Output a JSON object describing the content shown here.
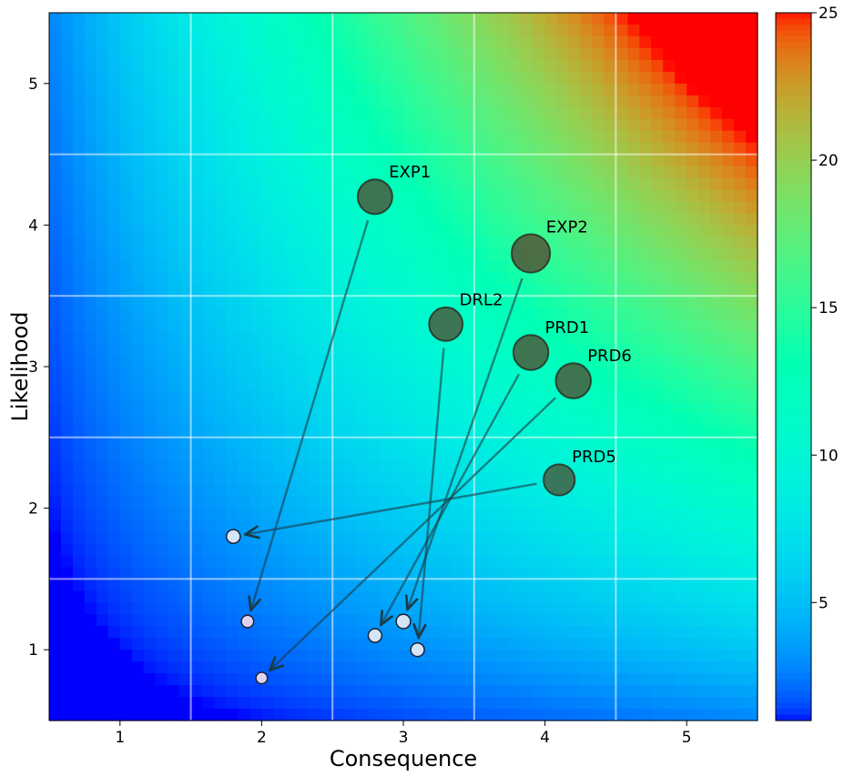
{
  "chart_data": {
    "type": "scatter",
    "title": "",
    "xlabel": "Consequence",
    "ylabel": "Likelihood",
    "xlim": [
      0.5,
      5.5
    ],
    "ylim": [
      0.5,
      5.5
    ],
    "xticks": [
      "1",
      "2",
      "3",
      "4",
      "5"
    ],
    "yticks": [
      "1",
      "2",
      "3",
      "4",
      "5"
    ],
    "grid": true,
    "background": "heatmap of Consequence × Likelihood using rainbow colormap",
    "colorbar": {
      "min": 1,
      "max": 25,
      "ticks": [
        "5",
        "10",
        "15",
        "20",
        "25"
      ],
      "colormap": "rainbow"
    },
    "risks": [
      {
        "label": "EXP1",
        "before": {
          "x": 2.8,
          "y": 4.2
        },
        "after": {
          "x": 1.9,
          "y": 1.2
        }
      },
      {
        "label": "EXP2",
        "before": {
          "x": 3.9,
          "y": 3.8
        },
        "after": {
          "x": 3.0,
          "y": 1.2
        }
      },
      {
        "label": "DRL2",
        "before": {
          "x": 3.3,
          "y": 3.3
        },
        "after": {
          "x": 3.1,
          "y": 1.0
        }
      },
      {
        "label": "PRD1",
        "before": {
          "x": 3.9,
          "y": 3.1
        },
        "after": {
          "x": 2.8,
          "y": 1.1
        }
      },
      {
        "label": "PRD6",
        "before": {
          "x": 4.2,
          "y": 2.9
        },
        "after": {
          "x": 2.0,
          "y": 0.8
        }
      },
      {
        "label": "PRD5",
        "before": {
          "x": 4.1,
          "y": 2.2
        },
        "after": {
          "x": 1.8,
          "y": 1.8
        }
      }
    ]
  }
}
